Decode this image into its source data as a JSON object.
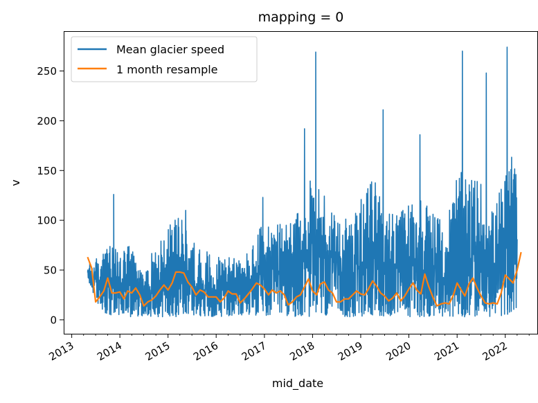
{
  "chart_data": {
    "type": "line",
    "title": "mapping = 0",
    "xlabel": "mid_date",
    "ylabel": "v",
    "xlim": [
      "2012-11-01",
      "2022-09-01"
    ],
    "ylim": [
      -14,
      290
    ],
    "x_ticks": [
      "2013",
      "2014",
      "2015",
      "2016",
      "2017",
      "2018",
      "2019",
      "2020",
      "2021",
      "2022"
    ],
    "y_ticks": [
      0,
      50,
      100,
      150,
      200,
      250
    ],
    "grid": false,
    "legend": {
      "placement": "top-left",
      "entries": [
        "Mean glacier speed",
        "1 month resample"
      ]
    },
    "series": [
      {
        "name": "Mean glacier speed",
        "color": "#1f77b4",
        "note_style": "dense raw line",
        "envelope": {
          "x": [
            "2013-05-01",
            "2013-08-01",
            "2013-10-01",
            "2014-01-01",
            "2014-04-01",
            "2014-07-01",
            "2014-10-01",
            "2015-01-01",
            "2015-04-01",
            "2015-07-01",
            "2015-10-01",
            "2016-01-01",
            "2016-04-01",
            "2016-07-01",
            "2016-10-01",
            "2017-01-01",
            "2017-04-01",
            "2017-07-01",
            "2017-10-01",
            "2018-01-01",
            "2018-04-01",
            "2018-07-01",
            "2018-10-01",
            "2019-01-01",
            "2019-04-01",
            "2019-07-01",
            "2019-10-01",
            "2020-01-01",
            "2020-04-01",
            "2020-07-01",
            "2020-10-01",
            "2021-01-01",
            "2021-04-01",
            "2021-07-01",
            "2021-10-01",
            "2022-01-01",
            "2022-04-01"
          ],
          "low": [
            40,
            12,
            5,
            4,
            3,
            4,
            3,
            3,
            3,
            4,
            4,
            3,
            3,
            4,
            5,
            4,
            3,
            4,
            3,
            3,
            3,
            4,
            3,
            3,
            3,
            4,
            3,
            3,
            3,
            4,
            3,
            3,
            3,
            4,
            3,
            4,
            12
          ],
          "high": [
            55,
            65,
            75,
            72,
            75,
            45,
            80,
            95,
            105,
            80,
            70,
            65,
            70,
            60,
            75,
            105,
            95,
            100,
            110,
            150,
            130,
            110,
            100,
            120,
            145,
            120,
            105,
            120,
            130,
            110,
            95,
            150,
            145,
            140,
            110,
            150,
            175
          ]
        },
        "spikes": [
          {
            "x": "2013-11-15",
            "y": 126
          },
          {
            "x": "2015-03-20",
            "y": 102
          },
          {
            "x": "2015-05-15",
            "y": 110
          },
          {
            "x": "2016-12-20",
            "y": 123
          },
          {
            "x": "2017-11-01",
            "y": 192
          },
          {
            "x": "2018-01-25",
            "y": 269
          },
          {
            "x": "2019-06-20",
            "y": 211
          },
          {
            "x": "2020-03-25",
            "y": 186
          },
          {
            "x": "2021-02-10",
            "y": 270
          },
          {
            "x": "2021-08-10",
            "y": 248
          },
          {
            "x": "2022-01-15",
            "y": 274
          }
        ]
      },
      {
        "name": "1 month resample",
        "color": "#ff7f0e",
        "x": [
          "2013-05-01",
          "2013-06-01",
          "2013-07-01",
          "2013-08-01",
          "2013-09-01",
          "2013-10-01",
          "2013-11-01",
          "2013-12-01",
          "2014-01-01",
          "2014-02-01",
          "2014-03-01",
          "2014-04-01",
          "2014-05-01",
          "2014-06-01",
          "2014-07-01",
          "2014-08-01",
          "2014-09-01",
          "2014-10-01",
          "2014-11-01",
          "2014-12-01",
          "2015-01-01",
          "2015-02-01",
          "2015-03-01",
          "2015-04-01",
          "2015-05-01",
          "2015-06-01",
          "2015-07-01",
          "2015-08-01",
          "2015-09-01",
          "2015-10-01",
          "2015-11-01",
          "2015-12-01",
          "2016-01-01",
          "2016-02-01",
          "2016-03-01",
          "2016-04-01",
          "2016-05-01",
          "2016-06-01",
          "2016-07-01",
          "2016-08-01",
          "2016-09-01",
          "2016-10-01",
          "2016-11-01",
          "2016-12-01",
          "2017-01-01",
          "2017-02-01",
          "2017-03-01",
          "2017-04-01",
          "2017-05-01",
          "2017-06-01",
          "2017-07-01",
          "2017-08-01",
          "2017-09-01",
          "2017-10-01",
          "2017-11-01",
          "2017-12-01",
          "2018-01-01",
          "2018-02-01",
          "2018-03-01",
          "2018-04-01",
          "2018-05-01",
          "2018-06-01",
          "2018-07-01",
          "2018-08-01",
          "2018-09-01",
          "2018-10-01",
          "2018-11-01",
          "2018-12-01",
          "2019-01-01",
          "2019-02-01",
          "2019-03-01",
          "2019-04-01",
          "2019-05-01",
          "2019-06-01",
          "2019-07-01",
          "2019-08-01",
          "2019-09-01",
          "2019-10-01",
          "2019-11-01",
          "2019-12-01",
          "2020-01-01",
          "2020-02-01",
          "2020-03-01",
          "2020-04-01",
          "2020-05-01",
          "2020-06-01",
          "2020-07-01",
          "2020-08-01",
          "2020-09-01",
          "2020-10-01",
          "2020-11-01",
          "2020-12-01",
          "2021-01-01",
          "2021-02-01",
          "2021-03-01",
          "2021-04-01",
          "2021-05-01",
          "2021-06-01",
          "2021-07-01",
          "2021-08-01",
          "2021-09-01",
          "2021-10-01",
          "2021-11-01",
          "2021-12-01",
          "2022-01-01",
          "2022-02-01",
          "2022-03-01",
          "2022-04-01",
          "2022-05-01"
        ],
        "values": [
          63,
          52,
          18,
          23,
          29,
          42,
          27,
          27,
          28,
          21,
          29,
          27,
          32,
          25,
          14,
          18,
          20,
          24,
          30,
          35,
          30,
          37,
          48,
          48,
          47,
          38,
          33,
          25,
          30,
          28,
          23,
          23,
          23,
          18,
          22,
          29,
          26,
          26,
          17,
          21,
          26,
          31,
          37,
          35,
          31,
          25,
          30,
          27,
          29,
          25,
          15,
          18,
          23,
          25,
          33,
          41,
          29,
          25,
          36,
          38,
          30,
          27,
          18,
          18,
          21,
          21,
          25,
          29,
          26,
          25,
          31,
          39,
          34,
          27,
          24,
          19,
          22,
          27,
          19,
          24,
          31,
          37,
          30,
          26,
          46,
          33,
          23,
          14,
          16,
          17,
          16,
          24,
          37,
          30,
          24,
          36,
          42,
          32,
          24,
          17,
          16,
          17,
          16,
          27,
          45,
          41,
          37,
          50,
          68
        ]
      }
    ]
  }
}
